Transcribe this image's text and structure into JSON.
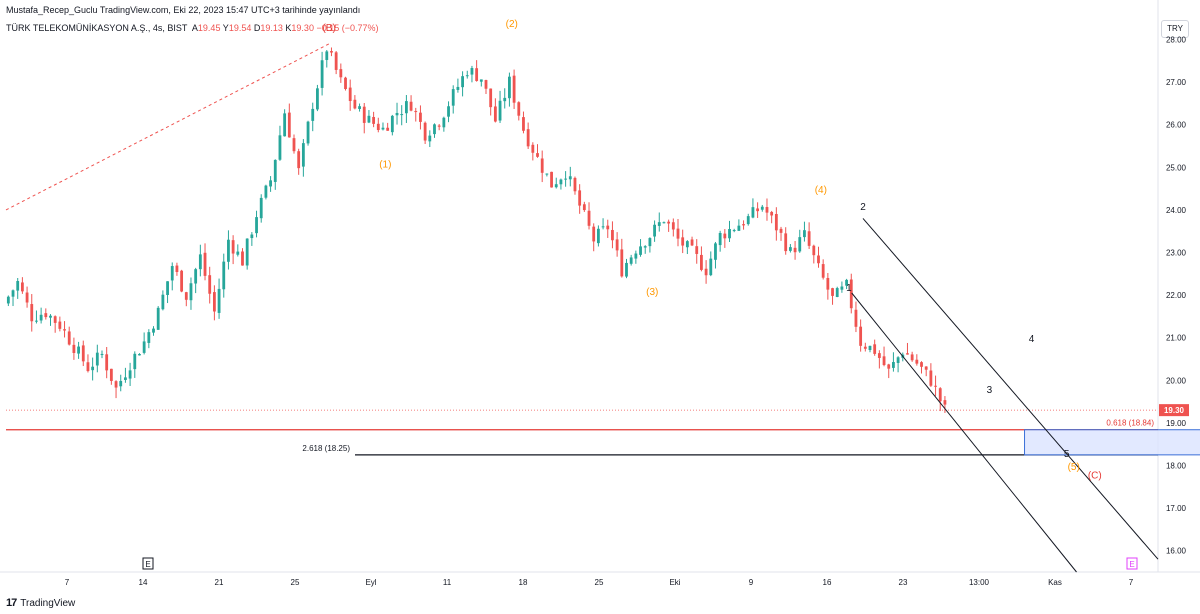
{
  "header": {
    "published": "Mustafa_Recep_Guclu TradingView.com, Eki 22, 2023 15:47 UTC+3 tarihinde yayınlandı",
    "symbol": "TÜRK TELEKOMÜNİKASYON A.Ş., 4s, BIST",
    "open_label": "A",
    "open": "19.45",
    "high_label": "Y",
    "high": "19.54",
    "low_label": "D",
    "low": "19.13",
    "close_label": "K",
    "close": "19.30",
    "change": "−0.15 (−0.77%)",
    "currency": "TRY"
  },
  "brand": {
    "logo": "17",
    "name": "TradingView"
  },
  "chart_data": {
    "type": "candlestick",
    "y_axis": {
      "min": 15.5,
      "max": 28.6,
      "ticks": [
        "28.00",
        "27.00",
        "26.00",
        "25.00",
        "24.00",
        "23.00",
        "22.00",
        "21.00",
        "20.00",
        "19.00",
        "18.00",
        "17.00",
        "16.00"
      ]
    },
    "x_axis": {
      "ticks": [
        "7",
        "14",
        "21",
        "25",
        "Eyl",
        "11",
        "18",
        "25",
        "Eki",
        "9",
        "16",
        "23",
        "13:00",
        "Kas",
        "7"
      ]
    },
    "last_price": "19.30",
    "up_color": "#26a69a",
    "down_color": "#ef5350",
    "price_path": [
      [
        0,
        21.8
      ],
      [
        1,
        22.3
      ],
      [
        2,
        21.5
      ],
      [
        3,
        21.6
      ],
      [
        4,
        21.3
      ],
      [
        5,
        20.8
      ],
      [
        6,
        20.3
      ],
      [
        7,
        20.6
      ],
      [
        8,
        19.8
      ],
      [
        9,
        20.4
      ],
      [
        10,
        20.9
      ],
      [
        11,
        21.6
      ],
      [
        12,
        22.7
      ],
      [
        13,
        22.0
      ],
      [
        14,
        22.9
      ],
      [
        15,
        21.6
      ],
      [
        16,
        23.3
      ],
      [
        17,
        22.8
      ],
      [
        18,
        23.9
      ],
      [
        19,
        24.7
      ],
      [
        20,
        26.3
      ],
      [
        21,
        24.9
      ],
      [
        22,
        26.5
      ],
      [
        23,
        27.8
      ],
      [
        24,
        27.0
      ],
      [
        25,
        26.4
      ],
      [
        26,
        26.1
      ],
      [
        27,
        25.9
      ],
      [
        28,
        26.3
      ],
      [
        29,
        26.5
      ],
      [
        30,
        25.8
      ],
      [
        31,
        26.1
      ],
      [
        32,
        26.7
      ],
      [
        33,
        27.3
      ],
      [
        34,
        27.1
      ],
      [
        35,
        26.1
      ],
      [
        36,
        27.0
      ],
      [
        37,
        25.9
      ],
      [
        38,
        25.2
      ],
      [
        39,
        24.6
      ],
      [
        40,
        24.9
      ],
      [
        41,
        24.1
      ],
      [
        42,
        23.3
      ],
      [
        43,
        23.6
      ],
      [
        44,
        22.6
      ],
      [
        45,
        23.1
      ],
      [
        46,
        23.4
      ],
      [
        47,
        23.8
      ],
      [
        48,
        23.3
      ],
      [
        49,
        23.0
      ],
      [
        50,
        22.6
      ],
      [
        51,
        23.4
      ],
      [
        52,
        23.6
      ],
      [
        53,
        23.8
      ],
      [
        54,
        24.1
      ],
      [
        55,
        23.6
      ],
      [
        56,
        23.0
      ],
      [
        57,
        23.4
      ],
      [
        58,
        22.6
      ],
      [
        59,
        21.9
      ],
      [
        60,
        22.2
      ],
      [
        61,
        20.9
      ],
      [
        62,
        20.7
      ],
      [
        63,
        20.2
      ],
      [
        64,
        20.7
      ],
      [
        65,
        20.4
      ],
      [
        66,
        20.0
      ],
      [
        67,
        19.3
      ]
    ],
    "annotations": [
      {
        "text": "(B)",
        "price": 28.2,
        "t": 23,
        "color": "#e53935"
      },
      {
        "text": "(2)",
        "price": 28.3,
        "t": 36,
        "color": "#ff9800"
      },
      {
        "text": "(1)",
        "price": 25.0,
        "t": 27,
        "color": "#ff9800"
      },
      {
        "text": "(3)",
        "price": 22.0,
        "t": 46,
        "color": "#ff9800"
      },
      {
        "text": "(4)",
        "price": 24.4,
        "t": 58,
        "color": "#ff9800"
      },
      {
        "text": "(5)",
        "price": 17.9,
        "t": 76,
        "color": "#ff9800"
      },
      {
        "text": "(C)",
        "price": 17.7,
        "t": 77.5,
        "color": "#e53935"
      },
      {
        "text": "2",
        "price": 24.0,
        "t": 61,
        "color": "#131722"
      },
      {
        "text": "1",
        "price": 22.1,
        "t": 60,
        "color": "#131722"
      },
      {
        "text": "3",
        "price": 19.7,
        "t": 70,
        "color": "#131722"
      },
      {
        "text": "4",
        "price": 20.9,
        "t": 73,
        "color": "#131722"
      },
      {
        "text": "5",
        "price": 18.2,
        "t": 75.5,
        "color": "#131722"
      }
    ],
    "levels": [
      {
        "label": "0.618 (18.84)",
        "price": 18.84,
        "color": "#e53935"
      },
      {
        "label": "2.618 (18.25)",
        "price": 18.25,
        "color": "#131722"
      }
    ],
    "event_markers": [
      "E",
      "E"
    ]
  }
}
